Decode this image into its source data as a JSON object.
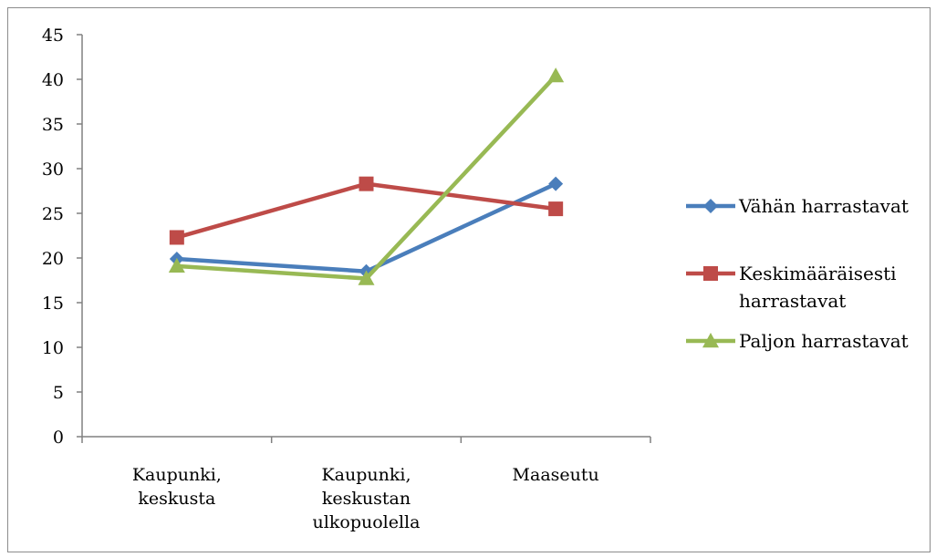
{
  "chart_data": {
    "type": "line",
    "categories": [
      [
        "Kaupunki,",
        "keskusta"
      ],
      [
        "Kaupunki,",
        "keskustan",
        "ulkopuolella"
      ],
      [
        "Maaseutu"
      ]
    ],
    "ylim": [
      0,
      45
    ],
    "yticks": [
      0,
      5,
      10,
      15,
      20,
      25,
      30,
      35,
      40,
      45
    ],
    "grid": false,
    "legend": "right",
    "series": [
      {
        "name": [
          "Vähän harrastavat"
        ],
        "color": "#4a7ebb",
        "marker": "diamond",
        "values": [
          19.9,
          18.5,
          28.3
        ]
      },
      {
        "name": [
          "Keskimääräisesti",
          "harrastavat"
        ],
        "color": "#be4b48",
        "marker": "square",
        "values": [
          22.3,
          28.3,
          25.5
        ]
      },
      {
        "name": [
          "Paljon harrastavat"
        ],
        "color": "#98b954",
        "marker": "triangle",
        "values": [
          19.1,
          17.7,
          40.4
        ]
      }
    ]
  }
}
